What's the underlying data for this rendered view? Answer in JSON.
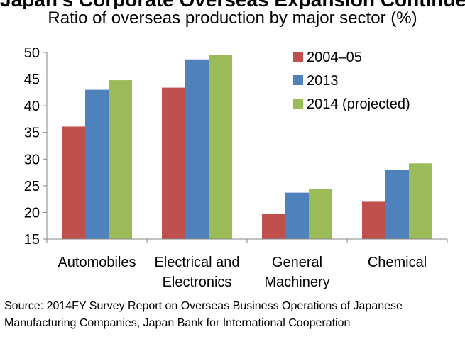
{
  "chart_data": {
    "type": "bar",
    "title": "Japan's Corporate Overseas Expansion Continues Strongly",
    "subtitle": "Ratio of overseas production by major sector (%)",
    "categories": [
      [
        "Automobiles"
      ],
      [
        "Electrical and",
        "Electronics"
      ],
      [
        "General",
        "Machinery"
      ],
      [
        "Chemical"
      ]
    ],
    "series": [
      {
        "name": "2004–05",
        "color": "#c0504d",
        "values": [
          36.1,
          43.4,
          19.7,
          22.0
        ]
      },
      {
        "name": "2013",
        "color": "#4f81bd",
        "values": [
          43.0,
          48.7,
          23.7,
          28.0
        ]
      },
      {
        "name": "2014 (projected)",
        "color": "#9bbb59",
        "values": [
          44.8,
          49.6,
          24.4,
          29.2
        ]
      }
    ],
    "ylim": [
      15,
      50
    ],
    "yticks": [
      15,
      20,
      25,
      30,
      35,
      40,
      45,
      50
    ],
    "grid": false,
    "legend": "top-right",
    "xlabel": "",
    "ylabel": ""
  },
  "source": "Source: 2014FY Survey Report on Overseas Business Operations of Japanese Manufacturing Companies, Japan Bank for International Cooperation"
}
